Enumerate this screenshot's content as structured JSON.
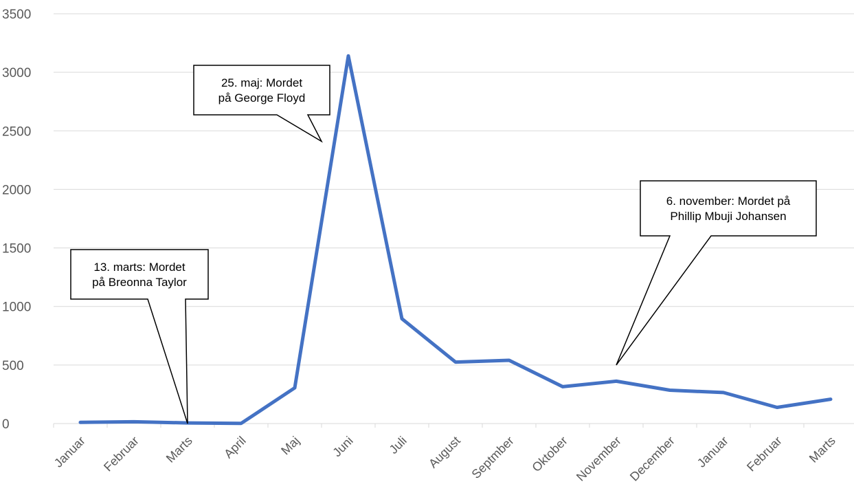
{
  "chart_data": {
    "type": "line",
    "title": "",
    "xlabel": "",
    "ylabel": "",
    "ylim": [
      0,
      3500
    ],
    "yticks": [
      0,
      500,
      1000,
      1500,
      2000,
      2500,
      3000,
      3500
    ],
    "grid": true,
    "legend": "none",
    "categories": [
      "Januar",
      "Februar",
      "Marts",
      "April",
      "Maj",
      "Juni",
      "Juli",
      "August",
      "Septmber",
      "Oktober",
      "November",
      "December",
      "Januar",
      "Februar",
      "Marts"
    ],
    "series": [
      {
        "values": [
          10,
          15,
          5,
          2,
          305,
          3140,
          895,
          525,
          540,
          315,
          362,
          285,
          265,
          138,
          208
        ],
        "color": "#4472C4"
      }
    ],
    "annotations": [
      {
        "lines": [
          "13. marts: Mordet",
          "på Breonna Taylor"
        ],
        "target_index": 2,
        "target_value": 0
      },
      {
        "lines": [
          "25. maj: Mordet",
          "på George Floyd"
        ],
        "target_index": 4.5,
        "target_value": 2410
      },
      {
        "lines": [
          "6. november: Mordet på",
          "Phillip Mbuji Johansen"
        ],
        "target_index": 10,
        "target_value": 500
      }
    ]
  }
}
